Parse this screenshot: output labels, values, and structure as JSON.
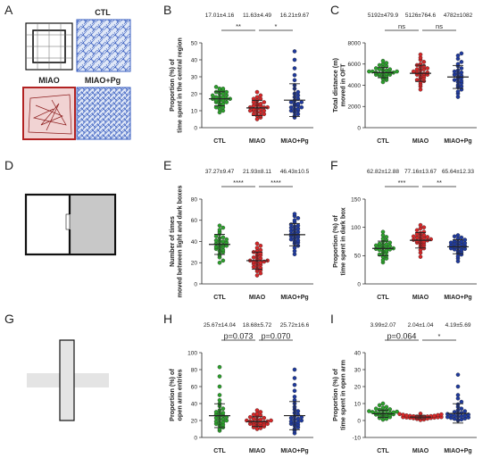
{
  "panel_letters": [
    "A",
    "B",
    "C",
    "D",
    "E",
    "F",
    "G",
    "H",
    "I"
  ],
  "arena_labels": {
    "ctl": "CTL",
    "miao": "MIAO",
    "miao_pg": "MIAO+Pg"
  },
  "colors": {
    "CTL": "#2ca02c",
    "MIAO": "#d62728",
    "MIAO+Pg": "#1f3a9e"
  },
  "chart_data": [
    {
      "id": "B",
      "type": "scatter",
      "categories": [
        "CTL",
        "MIAO",
        "MIAO+Pg"
      ],
      "stats_text": [
        "17.01±4.16",
        "11.63±4.49",
        "16.21±9.67"
      ],
      "ylabel_lines": [
        "Proportion (%) of",
        "time spent in the central region"
      ],
      "ylim": [
        0,
        50
      ],
      "yticks": [
        0,
        10,
        20,
        30,
        40,
        50
      ],
      "series": [
        {
          "name": "CTL",
          "mean": 17.01,
          "sd": 4.16,
          "values": [
            9,
            10,
            11,
            12,
            12,
            13,
            14,
            14,
            15,
            15,
            16,
            16,
            16,
            17,
            17,
            17,
            18,
            18,
            18,
            19,
            19,
            20,
            20,
            21,
            21,
            22,
            22,
            23,
            23,
            24
          ]
        },
        {
          "name": "MIAO",
          "mean": 11.63,
          "sd": 4.49,
          "values": [
            5,
            6,
            7,
            7,
            8,
            8,
            9,
            9,
            10,
            10,
            10,
            11,
            11,
            11,
            12,
            12,
            12,
            13,
            13,
            13,
            14,
            14,
            15,
            15,
            16,
            17,
            17,
            18,
            19,
            21
          ]
        },
        {
          "name": "MIAO+Pg",
          "mean": 16.21,
          "sd": 9.67,
          "values": [
            6,
            7,
            8,
            9,
            10,
            10,
            11,
            11,
            12,
            12,
            13,
            13,
            14,
            14,
            15,
            15,
            16,
            17,
            18,
            19,
            20,
            21,
            23,
            25,
            28,
            31,
            35,
            40,
            45
          ]
        }
      ],
      "comparisons": [
        {
          "from": 0,
          "to": 1,
          "label": "**"
        },
        {
          "from": 1,
          "to": 2,
          "label": "*"
        }
      ]
    },
    {
      "id": "C",
      "type": "scatter",
      "categories": [
        "CTL",
        "MIAO",
        "MIAO+Pg"
      ],
      "stats_text": [
        "5192±479.9",
        "5126±764.6",
        "4782±1082"
      ],
      "ylabel_lines": [
        "Total distance (m)",
        "moved in OFT"
      ],
      "ylim": [
        0,
        8000
      ],
      "yticks": [
        0,
        2000,
        4000,
        6000,
        8000
      ],
      "series": [
        {
          "name": "CTL",
          "mean": 5192,
          "sd": 479.9,
          "values": [
            4300,
            4500,
            4600,
            4700,
            4800,
            4900,
            4900,
            5000,
            5000,
            5100,
            5100,
            5100,
            5200,
            5200,
            5200,
            5300,
            5300,
            5300,
            5400,
            5400,
            5500,
            5500,
            5600,
            5700,
            5800,
            5900,
            6000,
            6100,
            6300
          ]
        },
        {
          "name": "MIAO",
          "mean": 5126,
          "sd": 764.6,
          "values": [
            3600,
            3900,
            4100,
            4300,
            4400,
            4500,
            4600,
            4700,
            4800,
            4900,
            5000,
            5000,
            5100,
            5100,
            5200,
            5200,
            5300,
            5400,
            5500,
            5500,
            5600,
            5700,
            5800,
            5900,
            6000,
            6200,
            6400,
            6600,
            6900
          ]
        },
        {
          "name": "MIAO+Pg",
          "mean": 4782,
          "sd": 1082,
          "values": [
            2900,
            3200,
            3400,
            3600,
            3800,
            3900,
            4000,
            4200,
            4300,
            4400,
            4500,
            4600,
            4700,
            4800,
            4900,
            5000,
            5100,
            5200,
            5300,
            5400,
            5600,
            5800,
            6000,
            6200,
            6500,
            6800,
            7000
          ]
        }
      ],
      "comparisons": [
        {
          "from": 0,
          "to": 1,
          "label": "ns"
        },
        {
          "from": 1,
          "to": 2,
          "label": "ns"
        }
      ]
    },
    {
      "id": "E",
      "type": "scatter",
      "categories": [
        "CTL",
        "MIAO",
        "MIAO+Pg"
      ],
      "stats_text": [
        "37.27±9.47",
        "21.93±8.11",
        "46.43±10.5"
      ],
      "ylabel_lines": [
        "Number of times",
        "moved between light and dark boxes"
      ],
      "ylim": [
        0,
        80
      ],
      "yticks": [
        0,
        20,
        40,
        60,
        80
      ],
      "series": [
        {
          "name": "CTL",
          "mean": 37.27,
          "sd": 9.47,
          "values": [
            20,
            22,
            25,
            27,
            28,
            30,
            31,
            32,
            33,
            34,
            35,
            35,
            36,
            37,
            37,
            38,
            39,
            40,
            40,
            41,
            42,
            43,
            44,
            45,
            47,
            49,
            51,
            53,
            55
          ]
        },
        {
          "name": "MIAO",
          "mean": 21.93,
          "sd": 8.11,
          "values": [
            8,
            10,
            12,
            13,
            14,
            15,
            16,
            17,
            18,
            19,
            20,
            20,
            21,
            21,
            22,
            22,
            23,
            24,
            25,
            26,
            27,
            28,
            29,
            30,
            31,
            32,
            34,
            36,
            38
          ]
        },
        {
          "name": "MIAO+Pg",
          "mean": 46.43,
          "sd": 10.5,
          "values": [
            28,
            31,
            34,
            36,
            38,
            39,
            40,
            41,
            42,
            43,
            44,
            45,
            46,
            46,
            47,
            48,
            49,
            50,
            51,
            52,
            53,
            54,
            55,
            56,
            58,
            60,
            62,
            64,
            66
          ]
        }
      ],
      "comparisons": [
        {
          "from": 0,
          "to": 1,
          "label": "****"
        },
        {
          "from": 1,
          "to": 2,
          "label": "****"
        }
      ]
    },
    {
      "id": "F",
      "type": "scatter",
      "categories": [
        "CTL",
        "MIAO",
        "MIAO+Pg"
      ],
      "stats_text": [
        "62.82±12.88",
        "77.16±13.67",
        "65.64±12.33"
      ],
      "ylabel_lines": [
        "Proportion (%) of",
        "time spent in dark box"
      ],
      "ylim": [
        0,
        150
      ],
      "yticks": [
        0,
        50,
        100,
        150
      ],
      "series": [
        {
          "name": "CTL",
          "mean": 62.82,
          "sd": 12.88,
          "values": [
            38,
            42,
            45,
            48,
            50,
            52,
            54,
            56,
            58,
            59,
            60,
            61,
            62,
            63,
            64,
            65,
            66,
            67,
            68,
            69,
            70,
            71,
            73,
            75,
            77,
            80,
            83,
            86,
            92
          ]
        },
        {
          "name": "MIAO",
          "mean": 77.16,
          "sd": 13.67,
          "values": [
            48,
            55,
            60,
            63,
            66,
            68,
            70,
            72,
            73,
            74,
            75,
            76,
            77,
            78,
            79,
            80,
            81,
            82,
            83,
            84,
            85,
            86,
            88,
            90,
            92,
            95,
            98,
            100,
            104
          ]
        },
        {
          "name": "MIAO+Pg",
          "mean": 65.64,
          "sd": 12.33,
          "values": [
            40,
            45,
            49,
            52,
            54,
            56,
            58,
            60,
            61,
            62,
            63,
            64,
            65,
            66,
            67,
            68,
            69,
            70,
            71,
            72,
            73,
            74,
            75,
            76,
            78,
            80,
            82,
            84,
            86
          ]
        }
      ],
      "comparisons": [
        {
          "from": 0,
          "to": 1,
          "label": "***"
        },
        {
          "from": 1,
          "to": 2,
          "label": "**"
        }
      ]
    },
    {
      "id": "H",
      "type": "scatter",
      "categories": [
        "CTL",
        "MIAO",
        "MIAO+Pg"
      ],
      "stats_text": [
        "25.67±14.04",
        "18.68±5.72",
        "25.72±16.6"
      ],
      "ylabel_lines": [
        "Proportion (%) of",
        "open arm entries"
      ],
      "ylim": [
        0,
        100
      ],
      "yticks": [
        0,
        20,
        40,
        60,
        80,
        100
      ],
      "series": [
        {
          "name": "CTL",
          "mean": 25.67,
          "sd": 14.04,
          "values": [
            8,
            10,
            12,
            14,
            15,
            16,
            17,
            18,
            19,
            20,
            21,
            22,
            23,
            24,
            25,
            26,
            27,
            28,
            29,
            30,
            32,
            34,
            37,
            40,
            44,
            50,
            60,
            72,
            83
          ]
        },
        {
          "name": "MIAO",
          "mean": 18.68,
          "sd": 5.72,
          "values": [
            10,
            11,
            12,
            13,
            14,
            14,
            15,
            15,
            16,
            16,
            17,
            17,
            18,
            18,
            19,
            19,
            20,
            20,
            21,
            21,
            22,
            23,
            24,
            25,
            26,
            27,
            28,
            30,
            32
          ]
        },
        {
          "name": "MIAO+Pg",
          "mean": 25.72,
          "sd": 16.6,
          "values": [
            5,
            8,
            10,
            12,
            14,
            15,
            16,
            17,
            18,
            19,
            20,
            21,
            22,
            23,
            24,
            25,
            27,
            29,
            31,
            33,
            36,
            40,
            44,
            48,
            55,
            62,
            70,
            80
          ]
        }
      ],
      "comparisons": [
        {
          "from": 0,
          "to": 1,
          "label": "p=0.073"
        },
        {
          "from": 1,
          "to": 2,
          "label": "p=0.070"
        }
      ]
    },
    {
      "id": "I",
      "type": "scatter",
      "categories": [
        "CTL",
        "MIAO",
        "MIAO+Pg"
      ],
      "stats_text": [
        "3.99±2.07",
        "2.04±1.04",
        "4.19±5.69"
      ],
      "ylabel_lines": [
        "Proportion (%) of",
        "time spent in open arm"
      ],
      "ylim": [
        -10,
        40
      ],
      "yticks": [
        -10,
        0,
        10,
        20,
        30,
        40
      ],
      "series": [
        {
          "name": "CTL",
          "mean": 3.99,
          "sd": 2.07,
          "values": [
            0.5,
            1,
            1.5,
            2,
            2.5,
            2.8,
            3,
            3.2,
            3.5,
            3.7,
            4,
            4,
            4.2,
            4.4,
            4.6,
            4.8,
            5,
            5.2,
            5.5,
            5.8,
            6,
            6.3,
            6.6,
            7,
            7.5,
            8,
            9,
            10
          ]
        },
        {
          "name": "MIAO",
          "mean": 2.04,
          "sd": 1.04,
          "values": [
            0.3,
            0.6,
            0.9,
            1.1,
            1.3,
            1.5,
            1.6,
            1.7,
            1.8,
            1.9,
            2,
            2,
            2.1,
            2.2,
            2.3,
            2.4,
            2.5,
            2.6,
            2.7,
            2.8,
            3,
            3.2,
            3.4,
            3.6,
            3.8,
            4
          ]
        },
        {
          "name": "MIAO+Pg",
          "mean": 4.19,
          "sd": 5.69,
          "values": [
            0,
            0.3,
            0.6,
            1,
            1.2,
            1.5,
            1.8,
            2,
            2.2,
            2.5,
            2.8,
            3,
            3.2,
            3.5,
            3.8,
            4,
            4.5,
            5,
            5.5,
            6,
            7,
            8,
            9.5,
            11,
            13,
            15,
            20,
            27
          ]
        }
      ],
      "comparisons": [
        {
          "from": 0,
          "to": 1,
          "label": "p=0.064"
        },
        {
          "from": 1,
          "to": 2,
          "label": "*"
        }
      ]
    }
  ]
}
